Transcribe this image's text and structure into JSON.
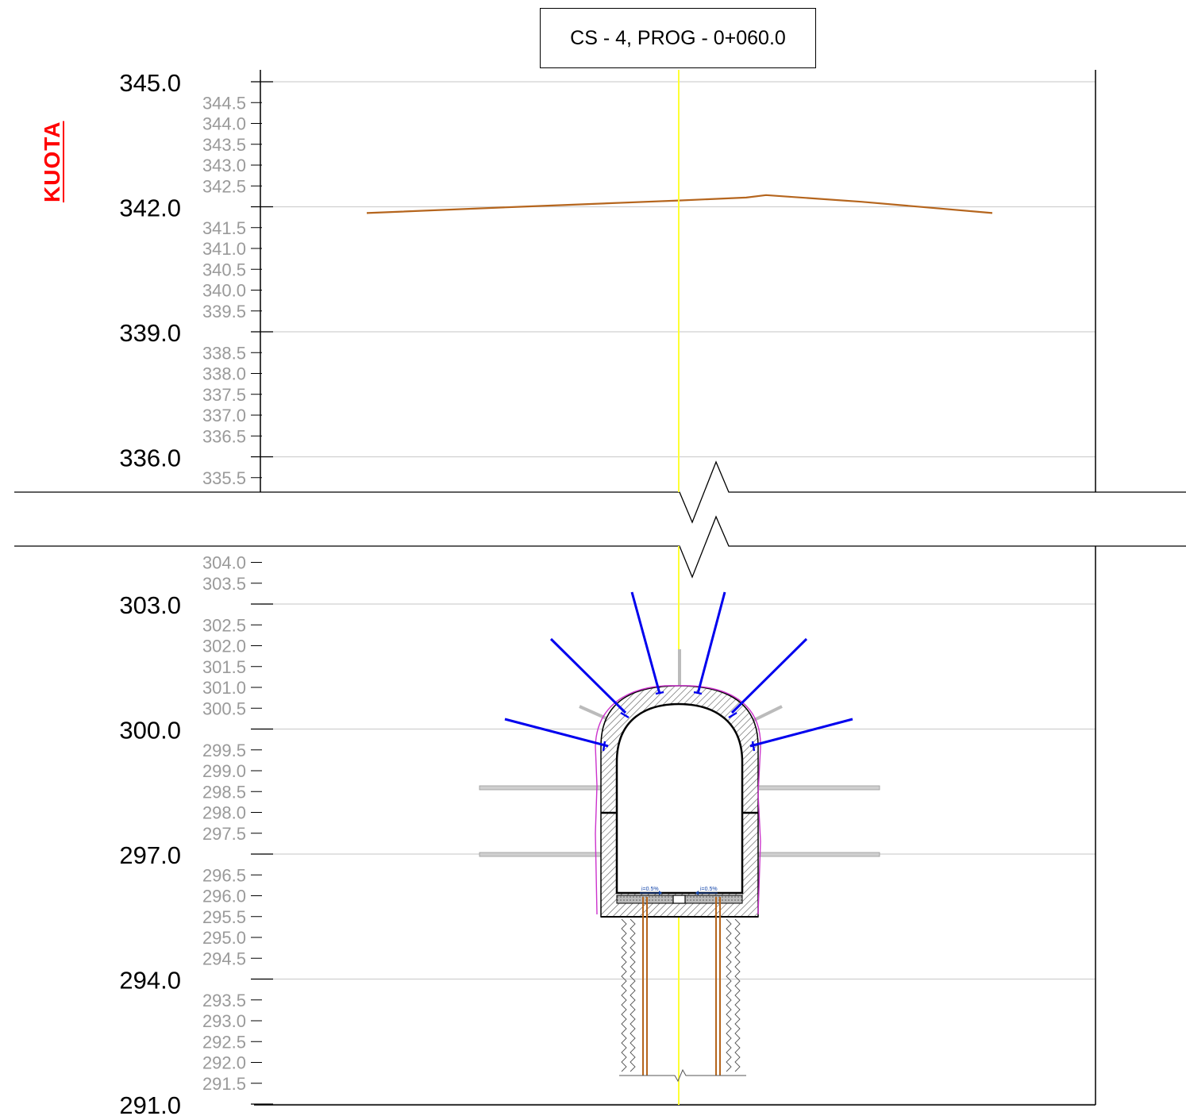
{
  "title": "CS - 4, PROG - 0+060.0",
  "axis_label": "KUOTA",
  "chart_data": {
    "type": "cross-section",
    "yaxis_label": "KUOTA",
    "upper_axis": {
      "range": [
        335.5,
        345.0
      ],
      "major_ticks": [
        "345.0",
        "342.0",
        "339.0",
        "336.0"
      ],
      "minor_ticks": [
        "344.5",
        "344.0",
        "343.5",
        "343.0",
        "342.5",
        "341.5",
        "341.0",
        "340.5",
        "340.0",
        "339.5",
        "338.5",
        "338.0",
        "337.5",
        "337.0",
        "336.5",
        "335.5"
      ]
    },
    "lower_axis": {
      "range": [
        291.0,
        304.0
      ],
      "major_ticks": [
        "303.0",
        "300.0",
        "297.0",
        "294.0",
        "291.0"
      ],
      "minor_ticks": [
        "304.0",
        "303.5",
        "302.5",
        "302.0",
        "301.5",
        "301.0",
        "300.5",
        "299.5",
        "299.0",
        "298.5",
        "298.0",
        "297.5",
        "296.5",
        "296.0",
        "295.5",
        "295.0",
        "294.5",
        "293.5",
        "293.0",
        "292.5",
        "292.0",
        "291.5"
      ]
    },
    "ground_profile_elev": [
      341.85,
      342.0,
      342.15,
      342.22,
      342.28,
      342.12,
      341.85
    ],
    "tunnel": {
      "crown_elev": 300.9,
      "floor_elev": 295.4,
      "slope_label_left": "i=0.5%",
      "slope_label_right": "i=0.5%"
    },
    "colors": {
      "ground": "#b5651d",
      "centerline": "#ffff33",
      "bolts": "#0000ee",
      "piles": "#b5651d",
      "excavation": "#cc33cc",
      "axis_label": "#ff0000"
    }
  }
}
